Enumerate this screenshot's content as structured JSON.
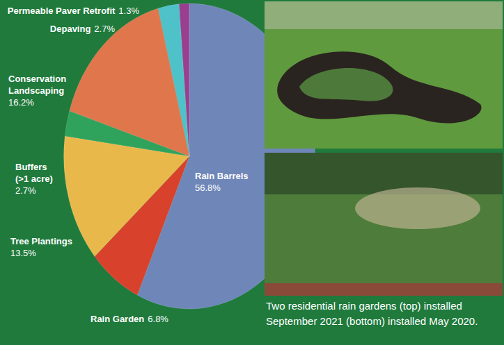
{
  "chart_data": {
    "type": "pie",
    "categories": [
      "Rain Barrels",
      "Rain Garden",
      "Tree Plantings",
      "Buffers (>1 acre)",
      "Conservation Landscaping",
      "Depaving",
      "Permeable Paver Retrofit"
    ],
    "values": [
      56.8,
      6.8,
      13.5,
      2.7,
      16.2,
      2.7,
      1.3
    ],
    "value_labels": [
      "56.8%",
      "6.8%",
      "13.5%",
      "2.7%",
      "16.2%",
      "2.7%",
      "1.3%"
    ],
    "colors": [
      "#6f86b9",
      "#d8412c",
      "#e9b84b",
      "#2fa35b",
      "#e0764b",
      "#4fc1c9",
      "#9a3f8f"
    ],
    "data_labels": true,
    "annotations": [
      "Two residential rain gardens (top) installed September 2021 (bottom) installed May 2020."
    ]
  }
}
